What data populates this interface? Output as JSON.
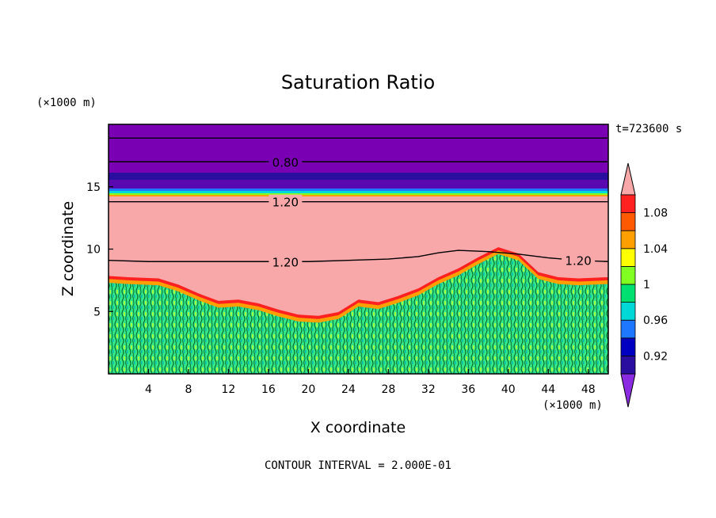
{
  "chart_data": {
    "type": "heatmap",
    "title": "Saturation Ratio",
    "xlabel": "X coordinate",
    "ylabel": "Z coordinate",
    "x_unit": "(×1000 m)",
    "y_unit": "(×1000 m)",
    "time_label": "t=723600 s",
    "footer": "CONTOUR INTERVAL = 2.000E-01",
    "xlim": [
      0,
      50
    ],
    "ylim": [
      0,
      20
    ],
    "x_ticks": [
      4,
      8,
      12,
      16,
      20,
      24,
      28,
      32,
      36,
      40,
      44,
      48
    ],
    "y_ticks": [
      5,
      10,
      15
    ],
    "colorbar": {
      "levels": [
        {
          "label": "",
          "color": "#8a2be2"
        },
        {
          "label": "0.92",
          "color": "#2a0ea0"
        },
        {
          "label": "",
          "color": "#0000c0"
        },
        {
          "label": "0.96",
          "color": "#1e78ff"
        },
        {
          "label": "",
          "color": "#00d8d8"
        },
        {
          "label": "1",
          "color": "#00e070"
        },
        {
          "label": "",
          "color": "#80ff20"
        },
        {
          "label": "1.04",
          "color": "#ffff00"
        },
        {
          "label": "",
          "color": "#ffa000"
        },
        {
          "label": "1.08",
          "color": "#ff5a00"
        },
        {
          "label": "",
          "color": "#ff2020"
        },
        {
          "label": "",
          "color": "#f8a8a8"
        }
      ]
    },
    "contour_labels": [
      {
        "text": "0.80",
        "x": 17.7,
        "z": 17.0
      },
      {
        "text": "1.20",
        "x": 17.7,
        "z": 13.8
      },
      {
        "text": "1.20",
        "x": 17.7,
        "z": 9.0
      },
      {
        "text": "1.20",
        "x": 47.0,
        "z": 9.1
      }
    ],
    "contour_lines_z": [
      18.9,
      17.0,
      13.8
    ],
    "cloud_top_profile": [
      [
        0,
        7.3
      ],
      [
        2,
        7.2
      ],
      [
        5,
        7.1
      ],
      [
        7,
        6.6
      ],
      [
        9,
        5.9
      ],
      [
        11,
        5.3
      ],
      [
        13,
        5.4
      ],
      [
        15,
        5.1
      ],
      [
        17,
        4.6
      ],
      [
        19,
        4.2
      ],
      [
        21,
        4.1
      ],
      [
        23,
        4.4
      ],
      [
        25,
        5.4
      ],
      [
        27,
        5.2
      ],
      [
        29,
        5.7
      ],
      [
        31,
        6.3
      ],
      [
        33,
        7.2
      ],
      [
        35,
        7.9
      ],
      [
        37,
        8.8
      ],
      [
        39,
        9.6
      ],
      [
        41,
        9.1
      ],
      [
        43,
        7.6
      ],
      [
        45,
        7.2
      ],
      [
        47,
        7.1
      ],
      [
        50,
        7.2
      ]
    ],
    "region_colors": {
      "stratosphere": "#7a00b4",
      "upper_band": "#5010a8",
      "saturated": "#f8a8a8",
      "cloud_base": "#00e070"
    }
  }
}
